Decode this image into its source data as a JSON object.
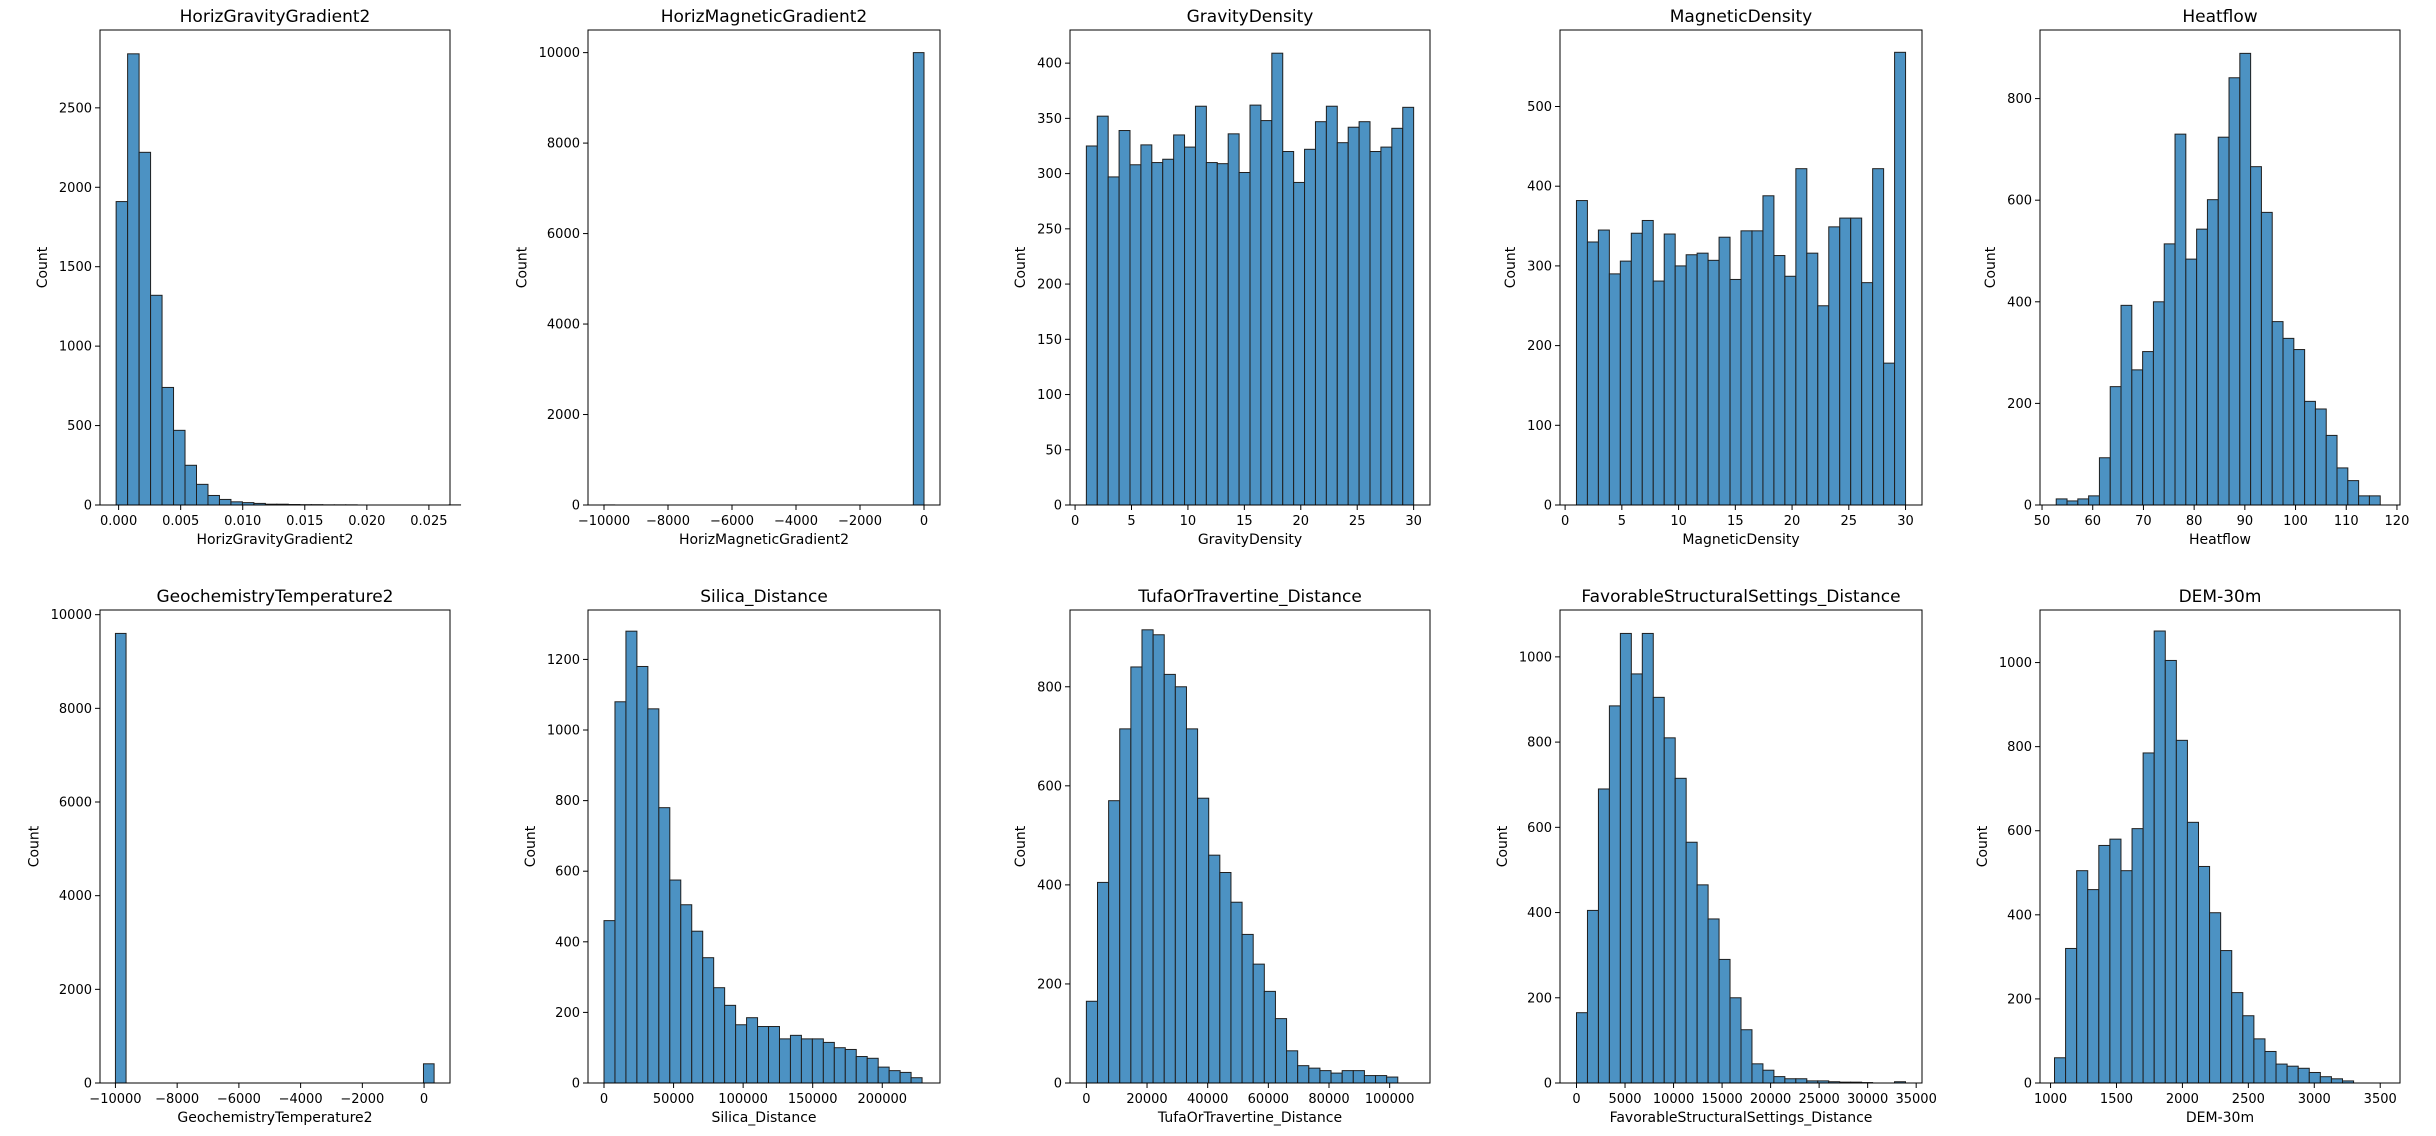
{
  "figure": {
    "bar_color": "#4c92c3",
    "edge_color": "#1f1f1f"
  },
  "chart_data": [
    {
      "type": "bar",
      "title": "HorizGravityGradient2",
      "xlabel": "HorizGravityGradient2",
      "ylabel": "Count",
      "bin_start": -0.0002,
      "bin_width": 0.000925,
      "values": [
        1910,
        2840,
        2220,
        1320,
        740,
        470,
        250,
        130,
        60,
        35,
        20,
        15,
        10,
        5,
        5,
        3,
        2,
        2,
        1,
        1,
        1,
        0,
        0,
        0,
        0,
        0,
        0,
        0,
        0,
        1
      ],
      "xlim": [
        -0.0015,
        0.0267
      ],
      "ylim": [
        0,
        2990
      ],
      "xticks": [
        0.0,
        0.005,
        0.01,
        0.015,
        0.02,
        0.025
      ],
      "xtick_labels": [
        "0.000",
        "0.005",
        "0.010",
        "0.015",
        "0.020",
        "0.025"
      ],
      "yticks": [
        0,
        500,
        1000,
        1500,
        2000,
        2500
      ],
      "ytick_labels": [
        "0",
        "500",
        "1000",
        "1500",
        "2000",
        "2500"
      ]
    },
    {
      "type": "bar",
      "title": "HorizMagneticGradient2",
      "xlabel": "HorizMagneticGradient2",
      "ylabel": "Count",
      "bin_start": -9999.9,
      "bin_width": 333.33,
      "values": [
        2,
        0,
        0,
        0,
        0,
        0,
        0,
        0,
        0,
        0,
        0,
        0,
        0,
        0,
        0,
        0,
        0,
        0,
        0,
        0,
        0,
        0,
        0,
        0,
        0,
        0,
        0,
        0,
        0,
        10000
      ],
      "xlim": [
        -10500,
        500
      ],
      "ylim": [
        0,
        10500
      ],
      "xticks": [
        -10000,
        -8000,
        -6000,
        -4000,
        -2000,
        0
      ],
      "xtick_labels": [
        "−10000",
        "−8000",
        "−6000",
        "−4000",
        "−2000",
        "0"
      ],
      "yticks": [
        0,
        2000,
        4000,
        6000,
        8000,
        10000
      ],
      "ytick_labels": [
        "0",
        "2000",
        "4000",
        "6000",
        "8000",
        "10000"
      ]
    },
    {
      "type": "bar",
      "title": "GravityDensity",
      "xlabel": "GravityDensity",
      "ylabel": "Count",
      "bin_start": 1.0,
      "bin_width": 0.9667,
      "values": [
        325,
        352,
        297,
        339,
        308,
        326,
        310,
        313,
        335,
        324,
        361,
        310,
        309,
        336,
        301,
        362,
        348,
        409,
        320,
        292,
        322,
        347,
        361,
        328,
        342,
        347,
        320,
        324,
        341,
        360
      ],
      "xlim": [
        -0.45,
        31.45
      ],
      "ylim": [
        0,
        430
      ],
      "xticks": [
        0,
        5,
        10,
        15,
        20,
        25,
        30
      ],
      "xtick_labels": [
        "0",
        "5",
        "10",
        "15",
        "20",
        "25",
        "30"
      ],
      "yticks": [
        0,
        50,
        100,
        150,
        200,
        250,
        300,
        350,
        400
      ],
      "ytick_labels": [
        "0",
        "50",
        "100",
        "150",
        "200",
        "250",
        "300",
        "350",
        "400"
      ]
    },
    {
      "type": "bar",
      "title": "MagneticDensity",
      "xlabel": "MagneticDensity",
      "ylabel": "Count",
      "bin_start": 1.0,
      "bin_width": 0.9667,
      "values": [
        382,
        330,
        345,
        290,
        306,
        341,
        357,
        281,
        340,
        300,
        314,
        316,
        307,
        336,
        283,
        344,
        344,
        388,
        313,
        287,
        422,
        316,
        250,
        349,
        360,
        360,
        279,
        422,
        178,
        568
      ],
      "xlim": [
        -0.45,
        31.45
      ],
      "ylim": [
        0,
        596
      ],
      "xticks": [
        0,
        5,
        10,
        15,
        20,
        25,
        30
      ],
      "xtick_labels": [
        "0",
        "5",
        "10",
        "15",
        "20",
        "25",
        "30"
      ],
      "yticks": [
        0,
        100,
        200,
        300,
        400,
        500
      ],
      "ytick_labels": [
        "0",
        "100",
        "200",
        "300",
        "400",
        "500"
      ]
    },
    {
      "type": "bar",
      "title": "Heatflow",
      "xlabel": "Heatflow",
      "ylabel": "Count",
      "bin_start": 52.8,
      "bin_width": 2.13,
      "values": [
        12,
        8,
        12,
        18,
        93,
        233,
        393,
        266,
        302,
        400,
        514,
        730,
        484,
        543,
        601,
        724,
        841,
        889,
        666,
        576,
        361,
        328,
        306,
        204,
        189,
        137,
        73,
        48,
        18,
        18
      ],
      "xlim": [
        49.6,
        120.6
      ],
      "ylim": [
        0,
        935
      ],
      "xticks": [
        50,
        60,
        70,
        80,
        90,
        100,
        110,
        120
      ],
      "xtick_labels": [
        "50",
        "60",
        "70",
        "80",
        "90",
        "100",
        "110",
        "120"
      ],
      "yticks": [
        0,
        200,
        400,
        600,
        800
      ],
      "ytick_labels": [
        "0",
        "200",
        "400",
        "600",
        "800"
      ]
    },
    {
      "type": "bar",
      "title": "GeochemistryTemperature2",
      "xlabel": "GeochemistryTemperature2",
      "ylabel": "Count",
      "bin_start": -9999.9,
      "bin_width": 344.15,
      "values": [
        9600,
        0,
        0,
        0,
        0,
        0,
        0,
        0,
        0,
        0,
        0,
        0,
        0,
        0,
        0,
        0,
        0,
        0,
        0,
        0,
        0,
        0,
        0,
        0,
        0,
        0,
        0,
        0,
        0,
        410
      ],
      "xlim": [
        -10500,
        840
      ],
      "ylim": [
        0,
        10100
      ],
      "xticks": [
        -10000,
        -8000,
        -6000,
        -4000,
        -2000,
        0
      ],
      "xtick_labels": [
        "−10000",
        "−8000",
        "−6000",
        "−4000",
        "−2000",
        "0"
      ],
      "yticks": [
        0,
        2000,
        4000,
        6000,
        8000,
        10000
      ],
      "ytick_labels": [
        "0",
        "2000",
        "4000",
        "6000",
        "8000",
        "10000"
      ]
    },
    {
      "type": "bar",
      "title": "Silica_Distance",
      "xlabel": "Silica_Distance",
      "ylabel": "Count",
      "bin_start": 0,
      "bin_width": 7883,
      "values": [
        460,
        1080,
        1280,
        1180,
        1060,
        780,
        575,
        505,
        430,
        355,
        270,
        220,
        165,
        185,
        160,
        160,
        125,
        135,
        125,
        125,
        115,
        100,
        95,
        75,
        70,
        45,
        35,
        30,
        15,
        0
      ],
      "xlim": [
        -11500,
        241500
      ],
      "ylim": [
        0,
        1340
      ],
      "xticks": [
        0,
        50000,
        100000,
        150000,
        200000
      ],
      "xtick_labels": [
        "0",
        "50000",
        "100000",
        "150000",
        "200000"
      ],
      "yticks": [
        0,
        200,
        400,
        600,
        800,
        1000,
        1200
      ],
      "ytick_labels": [
        "0",
        "200",
        "400",
        "600",
        "800",
        "1000",
        "1200"
      ]
    },
    {
      "type": "bar",
      "title": "TufaOrTravertine_Distance",
      "xlabel": "TufaOrTravertine_Distance",
      "ylabel": "Count",
      "bin_start": 0,
      "bin_width": 3667,
      "values": [
        165,
        405,
        570,
        715,
        840,
        915,
        905,
        825,
        800,
        715,
        575,
        460,
        425,
        365,
        300,
        240,
        185,
        130,
        65,
        35,
        30,
        25,
        20,
        25,
        25,
        15,
        15,
        12,
        0,
        0
      ],
      "xlim": [
        -5400,
        113300
      ],
      "ylim": [
        0,
        955
      ],
      "xticks": [
        0,
        20000,
        40000,
        60000,
        80000,
        100000
      ],
      "xtick_labels": [
        "0",
        "20000",
        "40000",
        "60000",
        "80000",
        "100000"
      ],
      "yticks": [
        0,
        200,
        400,
        600,
        800
      ],
      "ytick_labels": [
        "0",
        "200",
        "400",
        "600",
        "800"
      ]
    },
    {
      "type": "bar",
      "title": "FavorableStructuralSettings_Distance",
      "xlabel": "FavorableStructuralSettings_Distance",
      "ylabel": "Count",
      "bin_start": 0,
      "bin_width": 1130,
      "values": [
        165,
        405,
        690,
        885,
        1055,
        960,
        1055,
        905,
        810,
        715,
        565,
        465,
        385,
        290,
        200,
        125,
        45,
        30,
        15,
        10,
        10,
        5,
        5,
        3,
        2,
        2,
        1,
        0,
        0,
        3
      ],
      "xlim": [
        -1700,
        35600
      ],
      "ylim": [
        0,
        1110
      ],
      "xticks": [
        0,
        5000,
        10000,
        15000,
        20000,
        25000,
        30000,
        35000
      ],
      "xtick_labels": [
        "0",
        "5000",
        "10000",
        "15000",
        "20000",
        "25000",
        "30000",
        "35000"
      ],
      "yticks": [
        0,
        200,
        400,
        600,
        800,
        1000
      ],
      "ytick_labels": [
        "0",
        "200",
        "400",
        "600",
        "800",
        "1000"
      ]
    },
    {
      "type": "bar",
      "title": "DEM-30m",
      "xlabel": "DEM-30m",
      "ylabel": "Count",
      "bin_start": 1030,
      "bin_width": 84,
      "values": [
        60,
        320,
        505,
        460,
        565,
        580,
        505,
        605,
        785,
        1075,
        1005,
        815,
        620,
        515,
        405,
        315,
        215,
        160,
        105,
        75,
        45,
        40,
        35,
        25,
        15,
        10,
        5,
        0,
        0,
        0
      ],
      "xlim": [
        920,
        3650
      ],
      "ylim": [
        0,
        1125
      ],
      "xticks": [
        1000,
        1500,
        2000,
        2500,
        3000,
        3500
      ],
      "xtick_labels": [
        "1000",
        "1500",
        "2000",
        "2500",
        "3000",
        "3500"
      ],
      "yticks": [
        0,
        200,
        400,
        600,
        800,
        1000
      ],
      "ytick_labels": [
        "0",
        "200",
        "400",
        "600",
        "800",
        "1000"
      ]
    }
  ]
}
